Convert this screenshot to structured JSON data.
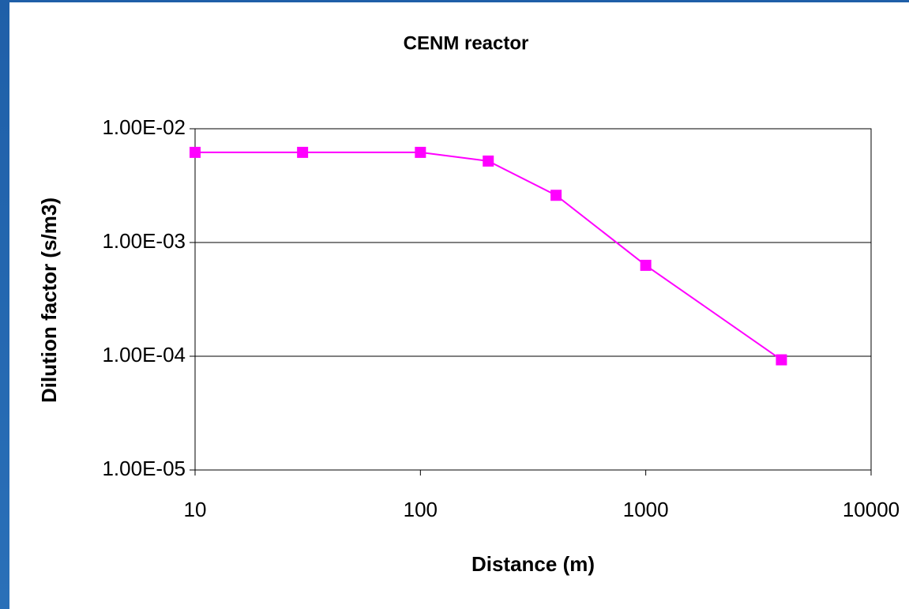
{
  "chart_data": {
    "type": "line",
    "title": "CENM reactor",
    "x_label": "Distance (m)",
    "y_label": "Dilution factor (s/m3)",
    "x": [
      10,
      30,
      100,
      200,
      400,
      1000,
      4000
    ],
    "series": [
      {
        "color": "#ff00ff",
        "values": [
          0.0062,
          0.0062,
          0.0062,
          0.0052,
          0.0026,
          0.00063,
          9.3e-05
        ]
      }
    ],
    "xlim": [
      10,
      10000
    ],
    "xticks": [
      10,
      100,
      1000,
      10000
    ],
    "ylim": [
      1e-05,
      0.01
    ],
    "yticks": [
      {
        "value": 1e-05,
        "label": "1.00E-05"
      },
      {
        "value": 0.0001,
        "label": "1.00E-04"
      },
      {
        "value": 0.001,
        "label": "1.00E-03"
      },
      {
        "value": 0.01,
        "label": "1.00E-02"
      }
    ],
    "xscale": "log",
    "yscale": "log",
    "grid": true
  }
}
